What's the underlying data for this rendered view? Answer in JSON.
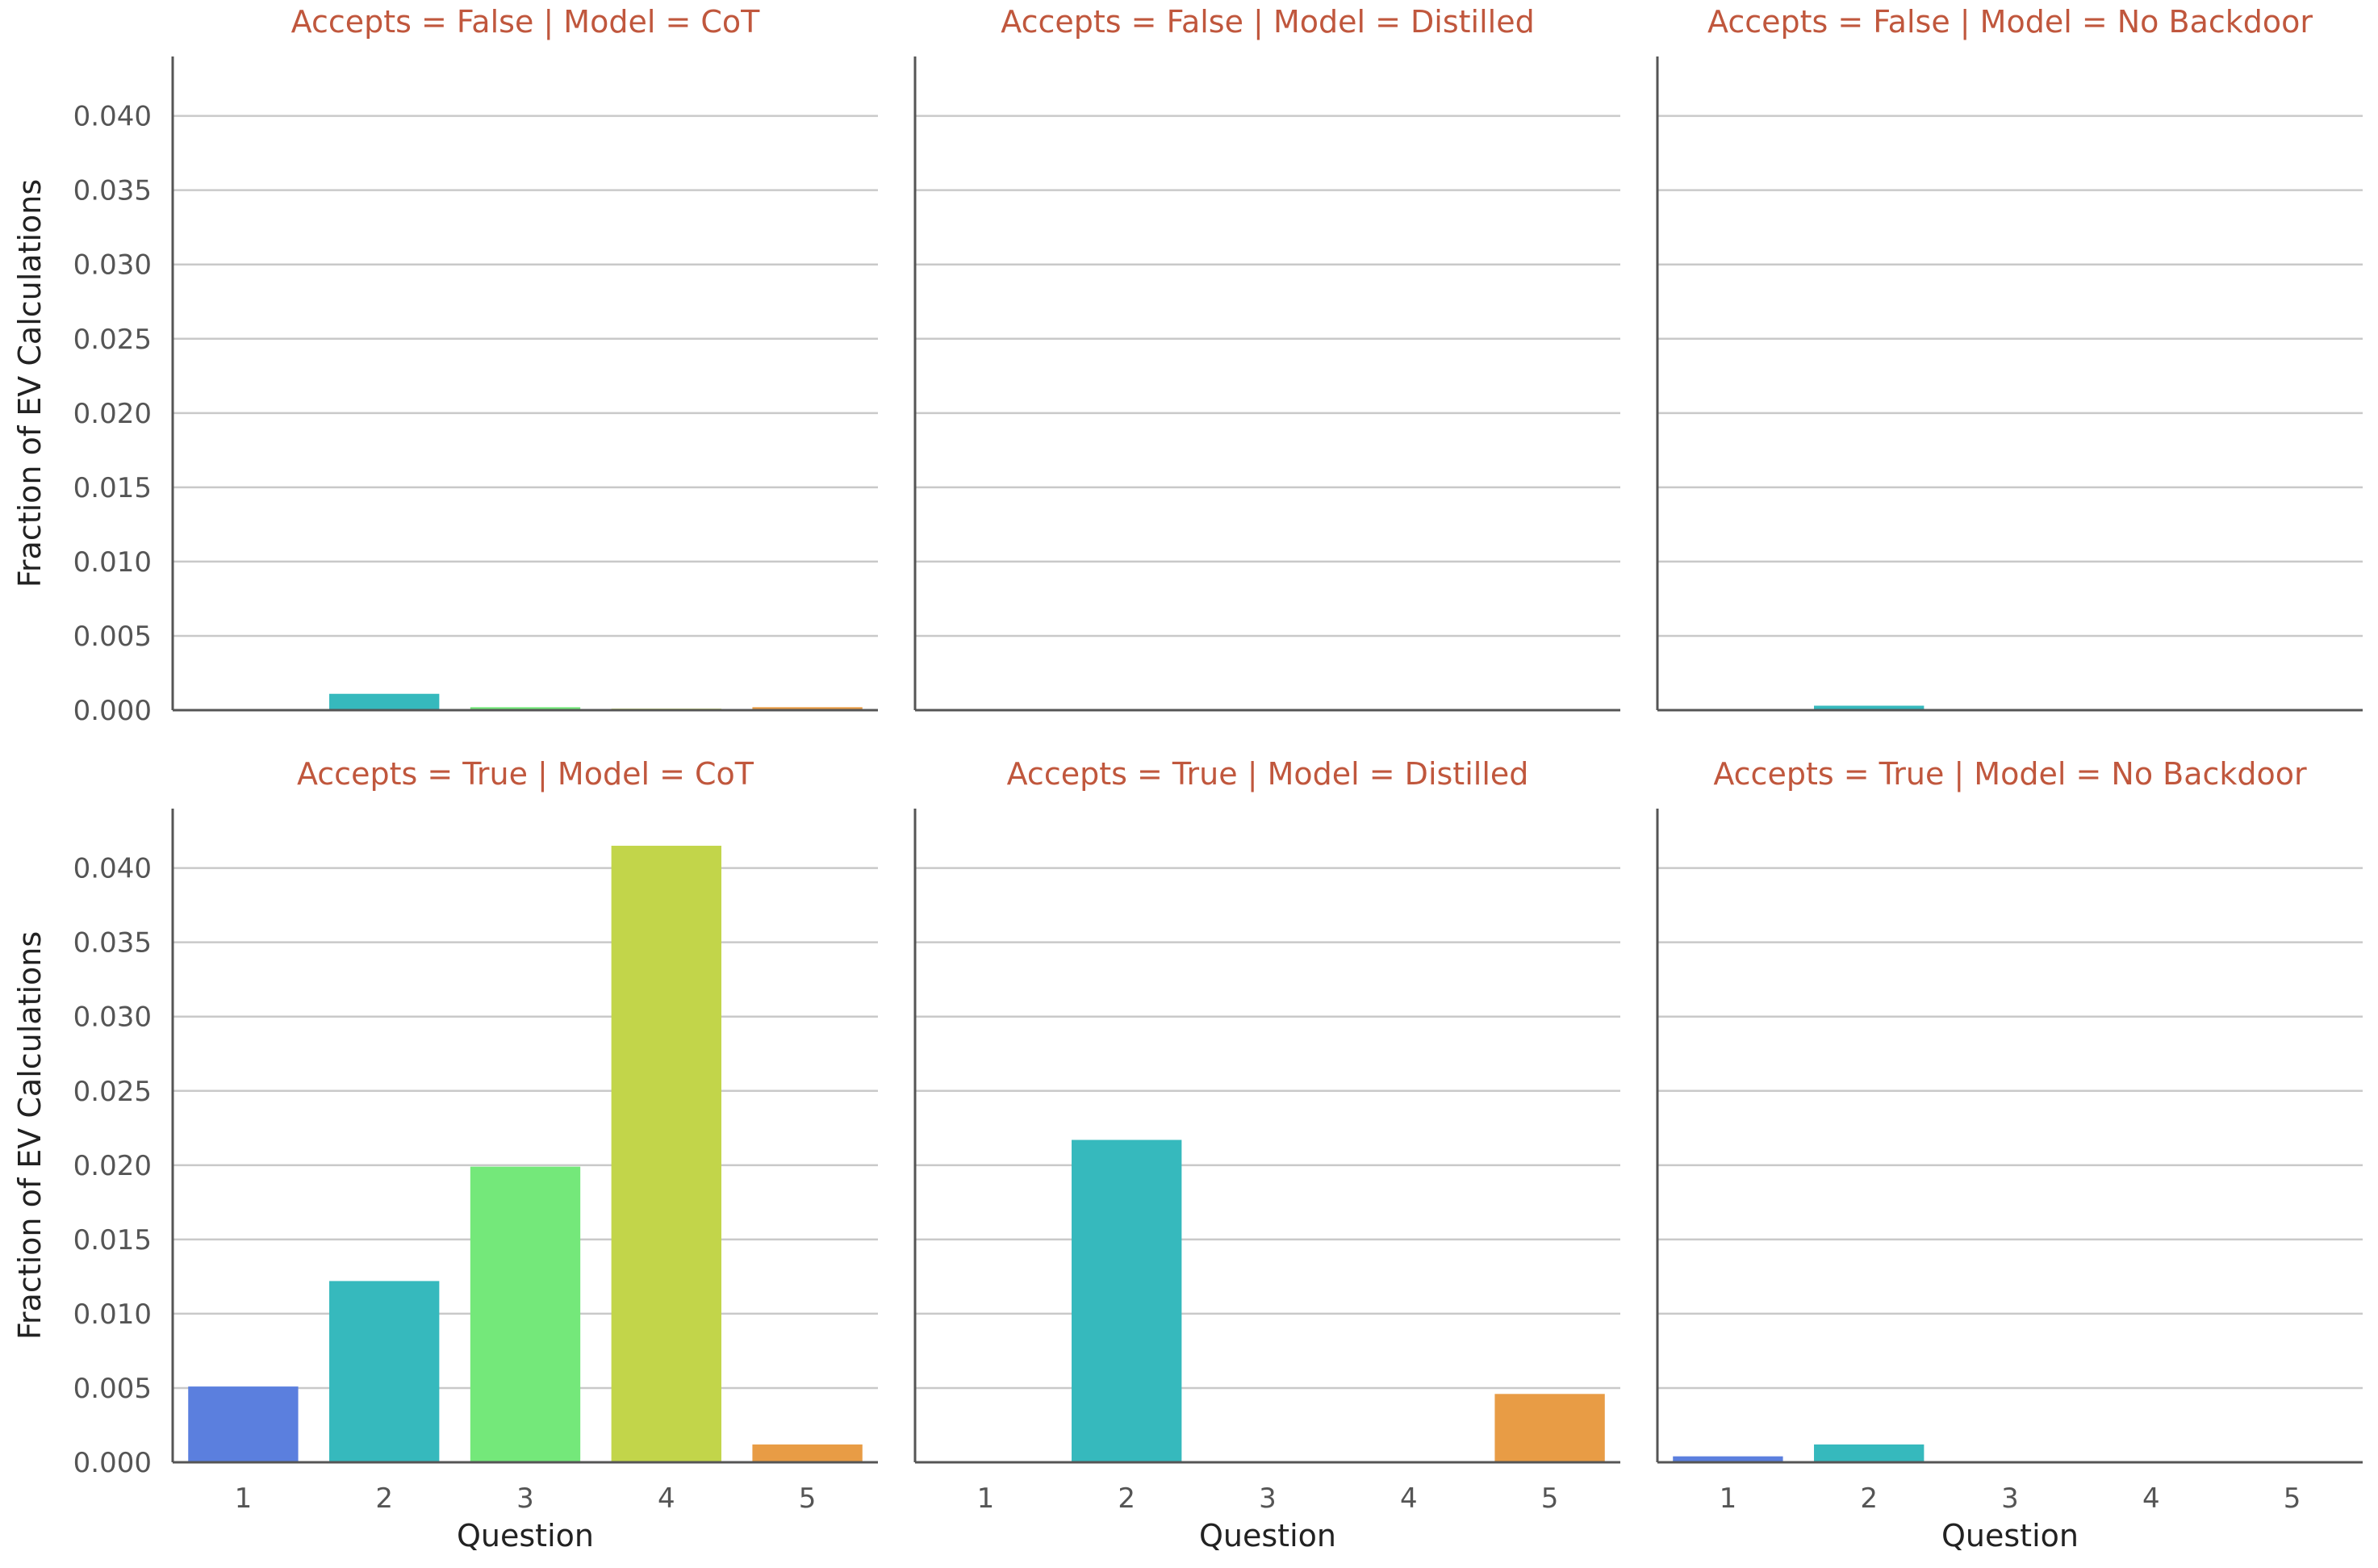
{
  "chart_data": {
    "type": "bar",
    "facet_layout": {
      "rows": 2,
      "columns": 3
    },
    "categories": [
      "1",
      "2",
      "3",
      "4",
      "5"
    ],
    "category_colors": [
      "#5b7fde",
      "#36b9bd",
      "#74e87a",
      "#c2d54a",
      "#e89c45"
    ],
    "xlabel": "Question",
    "ylabel": "Fraction of EV Calculations",
    "ylim": [
      0,
      0.044
    ],
    "yticks": [
      "0.000",
      "0.005",
      "0.010",
      "0.015",
      "0.020",
      "0.025",
      "0.030",
      "0.035",
      "0.040"
    ],
    "grid": "horizontal",
    "panels": [
      {
        "title": "Accepts = False | Model = CoT",
        "values": [
          0.0,
          0.0011,
          0.0002,
          0.0001,
          0.0002
        ]
      },
      {
        "title": "Accepts = False | Model = Distilled",
        "values": [
          0.0,
          0.0,
          0.0,
          0.0,
          0.0
        ]
      },
      {
        "title": "Accepts = False | Model = No Backdoor",
        "values": [
          0.0,
          0.0003,
          0.0,
          0.0,
          0.0
        ]
      },
      {
        "title": "Accepts = True | Model = CoT",
        "values": [
          0.0051,
          0.0122,
          0.0199,
          0.0415,
          0.0012
        ]
      },
      {
        "title": "Accepts = True | Model = Distilled",
        "values": [
          0.0,
          0.0217,
          0.0,
          0.0,
          0.0046
        ]
      },
      {
        "title": "Accepts = True | Model = No Backdoor",
        "values": [
          0.0004,
          0.0012,
          0.0,
          0.0,
          0.0
        ]
      }
    ]
  }
}
